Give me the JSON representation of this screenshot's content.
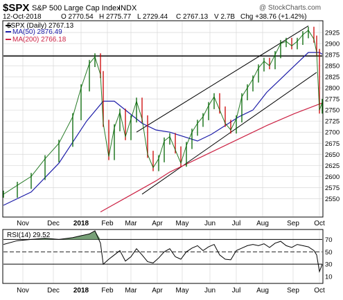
{
  "header": {
    "symbol": "$SPX",
    "name": "S&P 500 Large Cap Index",
    "exchange": "INDX",
    "date": "12-Oct-2018",
    "open": "O 2770.54",
    "high": "H 2775.77",
    "low": "L 2729.44",
    "close": "C 2767.13",
    "volume": "V 2.7B",
    "change": "Chg +38.76 (+1.42%)",
    "watermark": "@ StockCharts.com"
  },
  "legend": {
    "price": "$SPX (Daily) 2767.13",
    "ma50": "MA(50) 2876.49",
    "ma200": "MA(200) 2766.18",
    "rsi": "RSI(14) 29.52"
  },
  "colors": {
    "price": "#006400",
    "price_down": "#cc0000",
    "ma50": "#1c1ca8",
    "ma200": "#cc2244",
    "channel": "#000000",
    "rsi": "#000000",
    "rsi_fill": "#5f8f5f",
    "grid": "#d8d8d8",
    "resistance": "#000000"
  },
  "chart_data": [
    {
      "type": "line",
      "title": "$SPX (Daily)",
      "y_axis_side": "right",
      "ylim": [
        2510,
        2950
      ],
      "yticks": [
        2550,
        2575,
        2600,
        2625,
        2650,
        2675,
        2700,
        2725,
        2750,
        2775,
        2800,
        2825,
        2850,
        2875,
        2900,
        2925
      ],
      "x_ticks": [
        {
          "label": "Nov",
          "t": 0.07
        },
        {
          "label": "Dec",
          "t": 0.18
        },
        {
          "label": "2018",
          "t": 0.28
        },
        {
          "label": "Feb",
          "t": 0.375
        },
        {
          "label": "Mar",
          "t": 0.46
        },
        {
          "label": "Apr",
          "t": 0.555
        },
        {
          "label": "May",
          "t": 0.645
        },
        {
          "label": "Jun",
          "t": 0.745
        },
        {
          "label": "Jul",
          "t": 0.84
        },
        {
          "label": "Aug",
          "t": 0.935
        },
        {
          "label": "Sep",
          "t": 1.045
        },
        {
          "label": "Oct",
          "t": 1.14
        }
      ],
      "grid": true,
      "legend_position": "top-left",
      "series": [
        {
          "name": "$SPX (Daily)",
          "style": "ohlc",
          "x": [
            0.0,
            0.05,
            0.1,
            0.15,
            0.2,
            0.25,
            0.28,
            0.31,
            0.33,
            0.35,
            0.36,
            0.38,
            0.4,
            0.42,
            0.44,
            0.46,
            0.48,
            0.5,
            0.52,
            0.54,
            0.56,
            0.58,
            0.6,
            0.62,
            0.64,
            0.66,
            0.68,
            0.7,
            0.72,
            0.74,
            0.76,
            0.78,
            0.8,
            0.82,
            0.84,
            0.86,
            0.88,
            0.9,
            0.92,
            0.94,
            0.96,
            0.98,
            1.0,
            1.02,
            1.04,
            1.06,
            1.08,
            1.1,
            1.12,
            1.13,
            1.14,
            1.15
          ],
          "values": [
            2560,
            2580,
            2600,
            2640,
            2675,
            2735,
            2800,
            2855,
            2870,
            2830,
            2720,
            2645,
            2710,
            2745,
            2690,
            2730,
            2770,
            2730,
            2650,
            2620,
            2640,
            2680,
            2690,
            2660,
            2630,
            2670,
            2700,
            2720,
            2735,
            2760,
            2780,
            2750,
            2720,
            2705,
            2730,
            2780,
            2800,
            2820,
            2845,
            2860,
            2850,
            2875,
            2900,
            2905,
            2895,
            2905,
            2920,
            2930,
            2910,
            2880,
            2750,
            2767
          ]
        },
        {
          "name": "MA(50)",
          "x": [
            0.0,
            0.1,
            0.2,
            0.3,
            0.36,
            0.4,
            0.45,
            0.5,
            0.55,
            0.6,
            0.65,
            0.7,
            0.75,
            0.8,
            0.85,
            0.9,
            0.95,
            1.0,
            1.05,
            1.1,
            1.14,
            1.15
          ],
          "values": [
            2535,
            2565,
            2630,
            2725,
            2770,
            2770,
            2745,
            2720,
            2705,
            2700,
            2690,
            2680,
            2695,
            2715,
            2735,
            2750,
            2790,
            2820,
            2850,
            2880,
            2880,
            2876
          ]
        },
        {
          "name": "MA(200)",
          "x": [
            0.35,
            0.45,
            0.55,
            0.6,
            0.65,
            0.75,
            0.85,
            0.95,
            1.05,
            1.15
          ],
          "values": [
            2520,
            2555,
            2590,
            2610,
            2625,
            2655,
            2685,
            2715,
            2742,
            2766
          ]
        }
      ],
      "resistance": 2872,
      "channel": {
        "upper": {
          "x": [
            0.48,
            1.1
          ],
          "values": [
            2700,
            2940
          ]
        },
        "lower": {
          "x": [
            0.5,
            1.13
          ],
          "values": [
            2560,
            2835
          ]
        }
      }
    },
    {
      "type": "line",
      "title": "RSI(14)",
      "ylim": [
        0,
        85
      ],
      "yticks": [
        10,
        30,
        50,
        70
      ],
      "reference_lines": [
        30,
        50,
        70
      ],
      "series": [
        {
          "name": "RSI(14)",
          "x": [
            0.0,
            0.05,
            0.1,
            0.15,
            0.2,
            0.25,
            0.28,
            0.31,
            0.33,
            0.35,
            0.36,
            0.38,
            0.4,
            0.42,
            0.44,
            0.46,
            0.48,
            0.5,
            0.52,
            0.54,
            0.56,
            0.58,
            0.6,
            0.62,
            0.64,
            0.66,
            0.68,
            0.7,
            0.72,
            0.74,
            0.76,
            0.78,
            0.8,
            0.82,
            0.84,
            0.86,
            0.88,
            0.9,
            0.92,
            0.94,
            0.96,
            0.98,
            1.0,
            1.02,
            1.04,
            1.06,
            1.08,
            1.1,
            1.12,
            1.13,
            1.14,
            1.15
          ],
          "values": [
            62,
            68,
            70,
            72,
            70,
            73,
            76,
            79,
            84,
            64,
            30,
            38,
            45,
            52,
            35,
            42,
            55,
            45,
            34,
            32,
            40,
            50,
            55,
            42,
            38,
            50,
            56,
            60,
            52,
            58,
            62,
            45,
            38,
            37,
            52,
            56,
            60,
            62,
            60,
            63,
            57,
            64,
            67,
            60,
            57,
            62,
            60,
            58,
            52,
            45,
            18,
            29.52
          ]
        }
      ]
    }
  ]
}
